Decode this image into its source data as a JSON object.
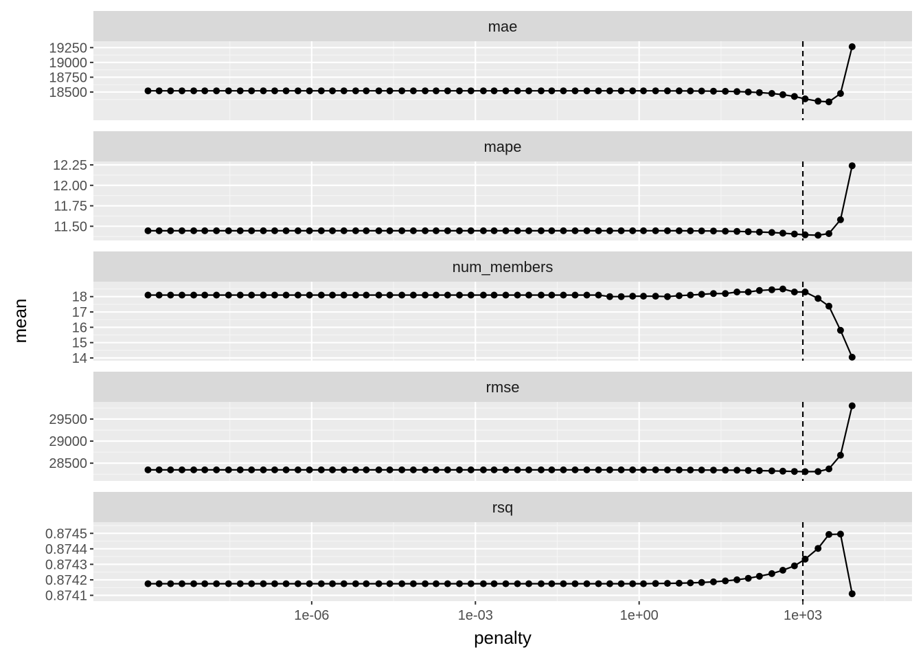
{
  "chart_data": {
    "type": "line",
    "xlabel": "penalty",
    "ylabel": "mean",
    "x_scale": "log10",
    "x_ticks": [
      {
        "value": 1e-06,
        "label": "1e-06"
      },
      {
        "value": 0.001,
        "label": "1e-03"
      },
      {
        "value": 1,
        "label": "1e+00"
      },
      {
        "value": 1000,
        "label": "1e+03"
      }
    ],
    "x_range": [
      1e-10,
      100000.0
    ],
    "reference_line": {
      "x": 1000,
      "style": "dashed"
    },
    "x": [
      1e-09,
      1.6e-09,
      2.6e-09,
      4.2e-09,
      6.9e-09,
      1.1e-08,
      1.8e-08,
      3e-08,
      4.9e-08,
      7.9e-08,
      1.3e-07,
      2.1e-07,
      3.4e-07,
      5.6e-07,
      9.1e-07,
      1.5e-06,
      2.4e-06,
      3.9e-06,
      6.4e-06,
      1e-05,
      1.7e-05,
      2.7e-05,
      4.5e-05,
      7.3e-05,
      0.00012,
      0.00019,
      0.00031,
      0.00051,
      0.00083,
      0.0014,
      0.0022,
      0.0036,
      0.0059,
      0.0095,
      0.016,
      0.025,
      0.041,
      0.067,
      0.11,
      0.18,
      0.29,
      0.47,
      0.76,
      1.2,
      2.0,
      3.3,
      5.4,
      8.7,
      14,
      23,
      38,
      62,
      100,
      160,
      270,
      430,
      700,
      1100,
      1900,
      3000,
      4900,
      8000
    ],
    "panels": [
      {
        "name": "mae",
        "ylim": [
          18070,
          19300
        ],
        "yticks": [
          {
            "value": 18500,
            "label": "18500"
          },
          {
            "value": 18750,
            "label": "18750"
          },
          {
            "value": 19000,
            "label": "19000"
          },
          {
            "value": 19250,
            "label": "19250"
          }
        ],
        "values": [
          18520,
          18520,
          18520,
          18520,
          18520,
          18520,
          18520,
          18520,
          18520,
          18520,
          18520,
          18520,
          18520,
          18520,
          18520,
          18520,
          18520,
          18520,
          18520,
          18520,
          18520,
          18520,
          18520,
          18520,
          18520,
          18520,
          18520,
          18520,
          18520,
          18520,
          18520,
          18520,
          18520,
          18520,
          18520,
          18520,
          18520,
          18520,
          18520,
          18520,
          18520,
          18520,
          18520,
          18520,
          18520,
          18519,
          18519,
          18518,
          18517,
          18515,
          18512,
          18508,
          18501,
          18491,
          18476,
          18455,
          18425,
          18385,
          18345,
          18335,
          18475,
          19265
        ]
      },
      {
        "name": "mape",
        "ylim": [
          11.36,
          12.25
        ],
        "yticks": [
          {
            "value": 11.5,
            "label": "11.50"
          },
          {
            "value": 11.75,
            "label": "11.75"
          },
          {
            "value": 12.0,
            "label": "12.00"
          },
          {
            "value": 12.25,
            "label": "12.25"
          }
        ],
        "values": [
          11.445,
          11.445,
          11.445,
          11.445,
          11.445,
          11.445,
          11.445,
          11.445,
          11.445,
          11.445,
          11.445,
          11.445,
          11.445,
          11.445,
          11.445,
          11.445,
          11.445,
          11.445,
          11.445,
          11.445,
          11.445,
          11.445,
          11.445,
          11.445,
          11.445,
          11.445,
          11.445,
          11.445,
          11.445,
          11.445,
          11.445,
          11.445,
          11.445,
          11.445,
          11.445,
          11.445,
          11.445,
          11.445,
          11.445,
          11.445,
          11.445,
          11.445,
          11.445,
          11.445,
          11.445,
          11.445,
          11.445,
          11.444,
          11.443,
          11.442,
          11.44,
          11.437,
          11.434,
          11.43,
          11.424,
          11.415,
          11.405,
          11.395,
          11.39,
          11.41,
          11.58,
          12.24
        ]
      },
      {
        "name": "num_members",
        "ylim": [
          14.0,
          18.75
        ],
        "yticks": [
          {
            "value": 14,
            "label": "14"
          },
          {
            "value": 15,
            "label": "15"
          },
          {
            "value": 16,
            "label": "16"
          },
          {
            "value": 17,
            "label": "17"
          },
          {
            "value": 18,
            "label": "18"
          }
        ],
        "values": [
          18.1,
          18.1,
          18.1,
          18.1,
          18.1,
          18.1,
          18.1,
          18.1,
          18.1,
          18.1,
          18.1,
          18.1,
          18.1,
          18.1,
          18.1,
          18.1,
          18.1,
          18.1,
          18.1,
          18.1,
          18.1,
          18.1,
          18.1,
          18.1,
          18.1,
          18.1,
          18.1,
          18.1,
          18.1,
          18.1,
          18.1,
          18.1,
          18.1,
          18.1,
          18.1,
          18.1,
          18.1,
          18.1,
          18.1,
          18.1,
          18.0,
          18.0,
          18.03,
          18.03,
          18.03,
          18.0,
          18.06,
          18.1,
          18.15,
          18.2,
          18.2,
          18.3,
          18.3,
          18.4,
          18.45,
          18.5,
          18.3,
          18.3,
          17.88,
          17.38,
          15.8,
          14.05
        ]
      },
      {
        "name": "rmse",
        "ylim": [
          28160,
          29810
        ],
        "yticks": [
          {
            "value": 28500,
            "label": "28500"
          },
          {
            "value": 29000,
            "label": "29000"
          },
          {
            "value": 29500,
            "label": "29500"
          }
        ],
        "values": [
          28348,
          28348,
          28348,
          28348,
          28348,
          28348,
          28348,
          28348,
          28348,
          28348,
          28348,
          28348,
          28348,
          28348,
          28348,
          28348,
          28348,
          28348,
          28348,
          28348,
          28348,
          28348,
          28348,
          28348,
          28348,
          28348,
          28348,
          28348,
          28348,
          28348,
          28348,
          28348,
          28348,
          28348,
          28348,
          28348,
          28348,
          28348,
          28348,
          28348,
          28348,
          28348,
          28348,
          28348,
          28348,
          28347,
          28347,
          28346,
          28345,
          28344,
          28342,
          28340,
          28336,
          28331,
          28325,
          28318,
          28312,
          28308,
          28310,
          28370,
          28680,
          29800
        ]
      },
      {
        "name": "rsq",
        "ylim": [
          0.87408,
          0.87455
        ],
        "yticks": [
          {
            "value": 0.8741,
            "label": "0.8741"
          },
          {
            "value": 0.8742,
            "label": "0.8742"
          },
          {
            "value": 0.8743,
            "label": "0.8743"
          },
          {
            "value": 0.8744,
            "label": "0.8744"
          },
          {
            "value": 0.8745,
            "label": "0.8745"
          }
        ],
        "values": [
          0.874175,
          0.874175,
          0.874175,
          0.874175,
          0.874175,
          0.874175,
          0.874175,
          0.874175,
          0.874175,
          0.874175,
          0.874175,
          0.874175,
          0.874175,
          0.874175,
          0.874175,
          0.874175,
          0.874175,
          0.874175,
          0.874175,
          0.874175,
          0.874175,
          0.874175,
          0.874175,
          0.874175,
          0.874175,
          0.874175,
          0.874175,
          0.874175,
          0.874175,
          0.874175,
          0.874175,
          0.874175,
          0.874175,
          0.874175,
          0.874175,
          0.874175,
          0.874175,
          0.874175,
          0.874175,
          0.874175,
          0.874175,
          0.874175,
          0.874175,
          0.874175,
          0.874176,
          0.874177,
          0.874178,
          0.87418,
          0.874183,
          0.874187,
          0.874193,
          0.8742,
          0.87421,
          0.874223,
          0.87424,
          0.874262,
          0.87429,
          0.874333,
          0.874403,
          0.874493,
          0.874495,
          0.87411
        ]
      }
    ]
  }
}
